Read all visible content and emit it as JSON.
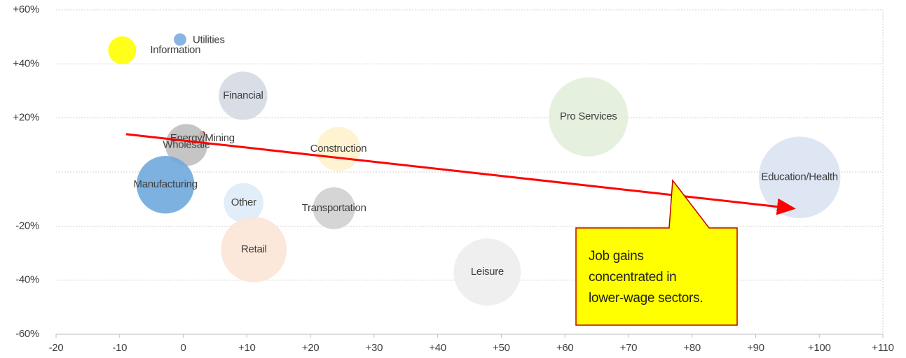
{
  "chart_data": {
    "type": "scatter",
    "x": [
      -9.6,
      -0.5,
      9.4,
      63.7,
      3,
      0.5,
      24.4,
      96.9,
      -2.8,
      9.5,
      23.7,
      11.1,
      47.8
    ],
    "series": [
      {
        "labels": [
          "Information",
          "Utilities",
          "Financial",
          "Pro Services",
          "Energy/Mining",
          "Wholesale",
          "Construction",
          "Education/Health",
          "Manufacturing",
          "Other",
          "Transportation",
          "Retail",
          "Leisure"
        ],
        "values": [
          45,
          49,
          28.2,
          20.4,
          14,
          10,
          8.5,
          -2,
          -4.7,
          -11.4,
          -13.4,
          -28.7,
          -37
        ],
        "sizes": [
          4,
          0.8,
          12,
          32,
          0.2,
          9,
          10,
          34,
          17,
          8,
          9,
          22,
          23
        ],
        "colors": [
          "#ffff00",
          "#7aaee0",
          "#d5dae3",
          "#e2efda",
          "#c00000",
          "#bfbfbf",
          "#fff2cc",
          "#dae3f3",
          "#6fa8dc",
          "#deebf7",
          "#d0d0d0",
          "#fbe5d6",
          "#ededed"
        ]
      }
    ],
    "xlim": [
      -20,
      110
    ],
    "xticks": [
      -20,
      -10,
      0,
      {
        "value": 10,
        "label": "+10"
      },
      {
        "value": 20,
        "label": "+20"
      },
      {
        "value": 30,
        "label": "+30"
      },
      {
        "value": 40,
        "label": "+40"
      },
      {
        "value": 50,
        "label": "+50"
      },
      {
        "value": 60,
        "label": "+60"
      },
      {
        "value": 70,
        "label": "+70"
      },
      {
        "value": 80,
        "label": "+80"
      },
      {
        "value": 90,
        "label": "+90"
      },
      {
        "value": 100,
        "label": "+100"
      },
      {
        "value": 110,
        "label": "+110"
      }
    ],
    "ylim": [
      -60,
      60
    ],
    "yticks": [
      {
        "value": -60,
        "label": "-60%"
      },
      {
        "value": -40,
        "label": "-40%"
      },
      {
        "value": -20,
        "label": "-20%"
      },
      {
        "value": 20,
        "label": "+20%"
      },
      {
        "value": 40,
        "label": "+40%"
      },
      {
        "value": 60,
        "label": "+60%"
      }
    ],
    "grid": true,
    "trend": {
      "x": [
        -9,
        96
      ],
      "y": [
        14,
        -13.5
      ],
      "color": "#ff0000"
    },
    "annotation": {
      "lines": [
        "Job gains",
        "concentrated in",
        "lower-wage sectors."
      ],
      "color": "#ffff00"
    }
  }
}
